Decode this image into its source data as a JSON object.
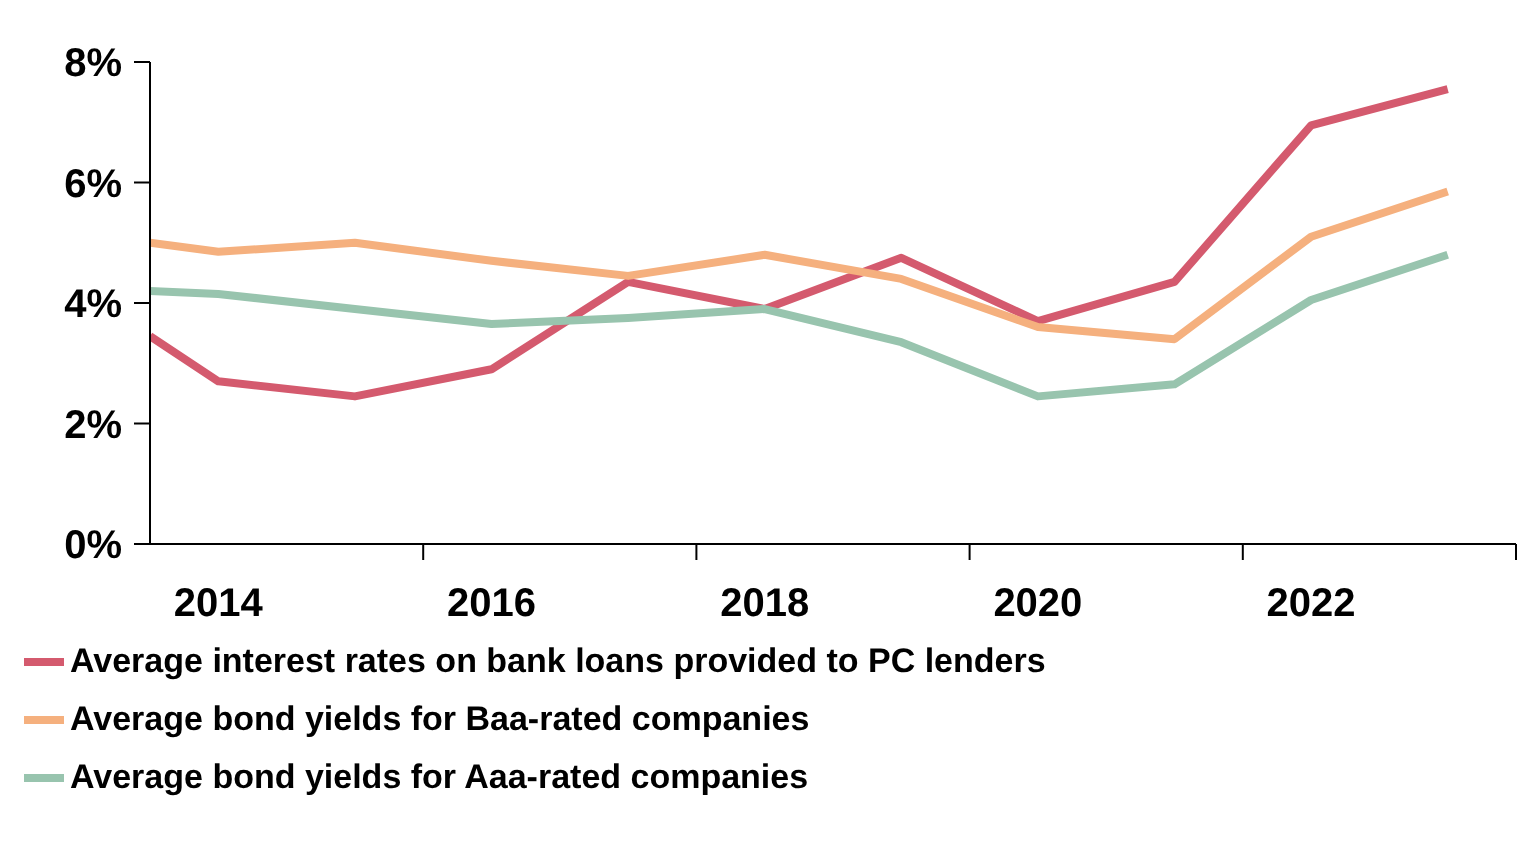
{
  "chart_data": {
    "type": "line",
    "x": [
      2013.5,
      2014,
      2015,
      2016,
      2017,
      2018,
      2019,
      2020,
      2021,
      2022,
      2023
    ],
    "xlim": [
      2013.5,
      2023.5
    ],
    "xticks": [
      2014,
      {
        "value": 2015.5,
        "label": null
      },
      2016,
      {
        "value": 2017.5,
        "label": null
      },
      2018,
      {
        "value": 2019.5,
        "label": null
      },
      2020,
      {
        "value": 2021.5,
        "label": null
      },
      2022,
      {
        "value": 2023.5,
        "label": null
      }
    ],
    "ylim": [
      0,
      8
    ],
    "yticks": [
      {
        "value": 0,
        "label": "0%"
      },
      {
        "value": 2,
        "label": "2%"
      },
      {
        "value": 4,
        "label": "4%"
      },
      {
        "value": 6,
        "label": "6%"
      },
      {
        "value": 8,
        "label": "8%"
      }
    ],
    "series": [
      {
        "name": "Average interest rates on bank loans provided to PC lenders",
        "color": "#d45a6e",
        "values": [
          3.45,
          2.7,
          2.45,
          2.9,
          4.35,
          3.9,
          4.75,
          3.7,
          4.35,
          6.95,
          7.55
        ]
      },
      {
        "name": "Average bond yields for Baa-rated companies",
        "color": "#f5b07e",
        "values": [
          5.0,
          4.85,
          5.0,
          4.7,
          4.45,
          4.8,
          4.4,
          3.6,
          3.4,
          5.1,
          5.85
        ]
      },
      {
        "name": "Average bond yields for Aaa-rated companies",
        "color": "#98c4ae",
        "values": [
          4.2,
          4.15,
          3.9,
          3.65,
          3.75,
          3.9,
          3.35,
          2.45,
          2.65,
          4.05,
          4.8
        ]
      }
    ],
    "grid": false,
    "legend": "bottom",
    "marker": "none",
    "line_style": "solid"
  }
}
